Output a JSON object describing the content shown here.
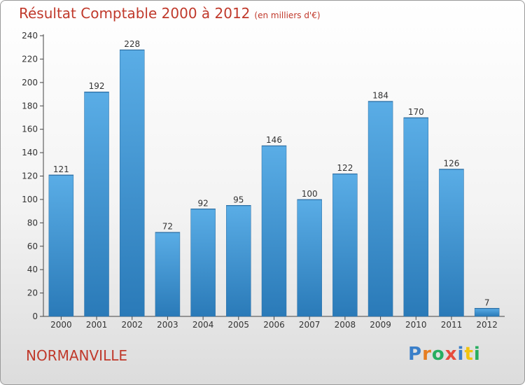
{
  "header": {
    "title": "Résultat Comptable 2000 à 2012",
    "subtitle": "(en milliers d'€)"
  },
  "footer": {
    "city": "NORMANVILLE",
    "logo_letters": [
      "P",
      "r",
      "o",
      "x",
      "i",
      "t",
      "i"
    ],
    "logo_colors": [
      "#3a7fc9",
      "#e67e22",
      "#27ae60",
      "#e74c3c",
      "#3a7fc9",
      "#f1c40f",
      "#27ae60"
    ]
  },
  "colors": {
    "title": "#c0392b",
    "bar_top": "#5aade6",
    "bar_bottom": "#2a7ab8"
  },
  "chart_data": {
    "type": "bar",
    "categories": [
      "2000",
      "2001",
      "2002",
      "2003",
      "2004",
      "2005",
      "2006",
      "2007",
      "2008",
      "2009",
      "2010",
      "2011",
      "2012"
    ],
    "values": [
      121,
      192,
      228,
      72,
      92,
      95,
      146,
      100,
      122,
      184,
      170,
      126,
      7
    ],
    "data_labels": [
      "121",
      "192",
      "228",
      "72",
      "92",
      "95",
      "146",
      "100",
      "122",
      "184",
      "170",
      "126",
      "7"
    ],
    "ylim": [
      0,
      240
    ],
    "yticks": [
      0,
      20,
      40,
      60,
      80,
      100,
      120,
      140,
      160,
      180,
      200,
      220,
      240
    ],
    "ytick_labels": [
      "0",
      "20",
      "40",
      "60",
      "80",
      "100",
      "120",
      "140",
      "160",
      "180",
      "200",
      "220",
      "240"
    ],
    "grid": false,
    "legend": "none"
  }
}
